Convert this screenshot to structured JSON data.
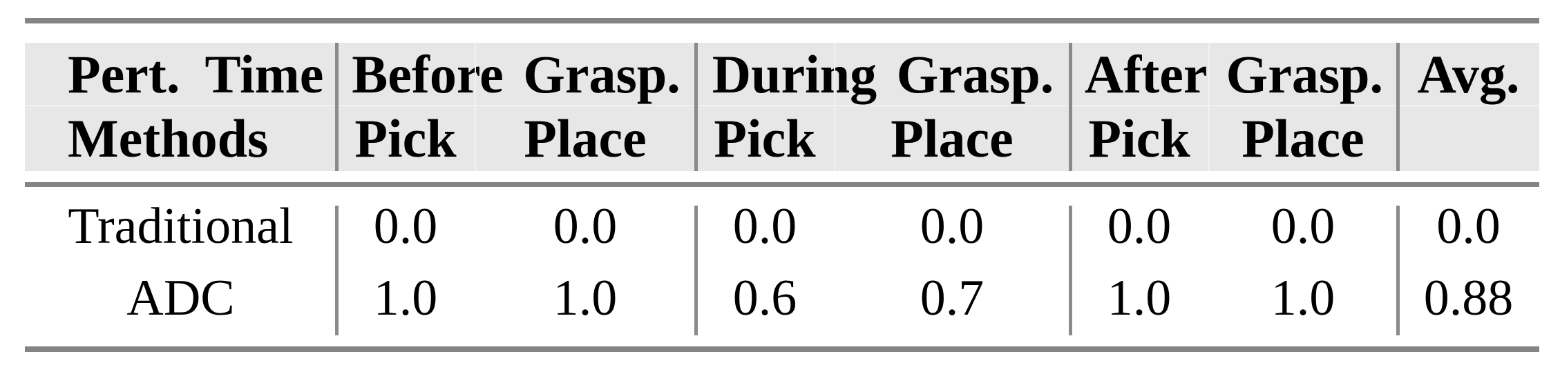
{
  "colors": {
    "rule": "#848484",
    "vline": "#8a8a8a",
    "header_bg": "#e7e7e7",
    "faint": "#f2f2f2",
    "text": "#000000",
    "page_bg": "#ffffff"
  },
  "chart_data": {
    "type": "table",
    "title": "",
    "corner_header": {
      "line1": "Pert. Time",
      "line2": "Methods"
    },
    "column_groups": [
      {
        "label": "Before Grasp.",
        "subcolumns": [
          "Pick",
          "Place"
        ]
      },
      {
        "label": "During Grasp.",
        "subcolumns": [
          "Pick",
          "Place"
        ]
      },
      {
        "label": "After Grasp.",
        "subcolumns": [
          "Pick",
          "Place"
        ]
      }
    ],
    "avg_column_label": "Avg.",
    "rows": [
      {
        "method": "Traditional",
        "values": [
          0.0,
          0.0,
          0.0,
          0.0,
          0.0,
          0.0
        ],
        "avg": 0.0
      },
      {
        "method": "ADC",
        "values": [
          1.0,
          1.0,
          0.6,
          0.7,
          1.0,
          1.0
        ],
        "avg": 0.88
      }
    ]
  },
  "table": {
    "header_row1": {
      "corner": "Pert. Time",
      "groups": [
        {
          "label": "Before Grasp."
        },
        {
          "label": "During Grasp."
        },
        {
          "label": "After Grasp."
        }
      ],
      "avg": "Avg."
    },
    "header_row2": {
      "corner": "Methods",
      "subcols": [
        "Pick",
        "Place",
        "Pick",
        "Place",
        "Pick",
        "Place"
      ],
      "avg": ""
    },
    "rows": [
      {
        "method": "Traditional",
        "values": [
          "0.0",
          "0.0",
          "0.0",
          "0.0",
          "0.0",
          "0.0"
        ],
        "avg": "0.0"
      },
      {
        "method": "ADC",
        "values": [
          "1.0",
          "1.0",
          "0.6",
          "0.7",
          "1.0",
          "1.0"
        ],
        "avg": "0.88"
      }
    ]
  }
}
